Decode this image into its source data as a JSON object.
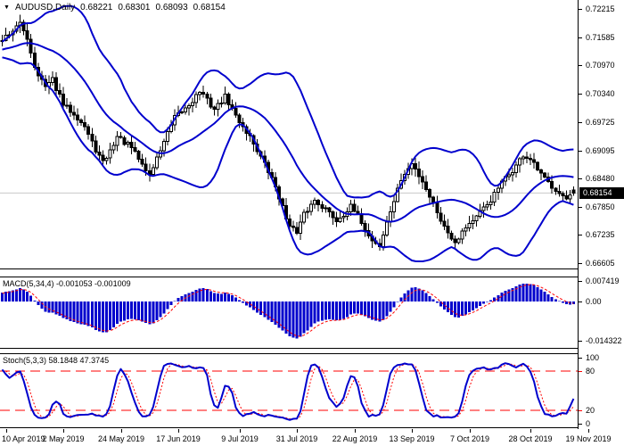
{
  "header": {
    "symbol_timeframe": "AUDUSD,Daily",
    "open": "0.68221",
    "high": "0.68301",
    "low": "0.68093",
    "close": "0.68154"
  },
  "price_panel": {
    "ticks": [
      {
        "v": 0.72215,
        "label": "0.72215"
      },
      {
        "v": 0.71585,
        "label": "0.71585"
      },
      {
        "v": 0.7097,
        "label": "0.70970"
      },
      {
        "v": 0.7034,
        "label": "0.70340"
      },
      {
        "v": 0.69725,
        "label": "0.69725"
      },
      {
        "v": 0.69095,
        "label": "0.69095"
      },
      {
        "v": 0.6848,
        "label": "0.68480"
      },
      {
        "v": 0.6785,
        "label": "0.67850"
      },
      {
        "v": 0.67235,
        "label": "0.67235"
      },
      {
        "v": 0.66605,
        "label": "0.66605"
      }
    ],
    "current_price": "0.68154",
    "ylim": [
      0.66489,
      0.72411
    ]
  },
  "macd_panel": {
    "label": "MACD(5,34,4) -0.001053 -0.001009",
    "ticks": [
      {
        "v": 0.007419,
        "label": "0.007419"
      },
      {
        "v": 0,
        "label": "0.00"
      },
      {
        "v": -0.014322,
        "label": "-0.014322"
      }
    ],
    "ylim": [
      -0.0169,
      0.0088
    ]
  },
  "stoch_panel": {
    "label": "Stoch(5,3,3) 58.1848 47.3745",
    "ticks": [
      {
        "v": 100,
        "label": "100",
        "color": "#000000"
      },
      {
        "v": 80,
        "label": "80",
        "color": "#FF0000"
      },
      {
        "v": 20,
        "label": "20",
        "color": "#FF0000"
      },
      {
        "v": 0,
        "label": "0",
        "color": "#000000"
      }
    ],
    "levels": [
      80,
      20
    ],
    "ylim": [
      -6,
      106
    ]
  },
  "time_axis": {
    "dates": [
      "10 Apr 2019",
      "2 May 2019",
      "24 May 2019",
      "17 Jun 2019",
      "9 Jul 2019",
      "31 Jul 2019",
      "22 Aug 2019",
      "13 Sep 2019",
      "7 Oct 2019",
      "28 Oct 2019",
      "19 Nov 2019"
    ],
    "tick_bar_indices": [
      1,
      17,
      33,
      49,
      66,
      82,
      98,
      114,
      130,
      147,
      163
    ]
  },
  "colors": {
    "bands": "#0000CD",
    "macd_histogram": "#0000CD",
    "macd_signal": "#FF0000",
    "stoch_k": "#0000CD",
    "stoch_d": "#FF0000",
    "levels": "#FF0000",
    "bull_body": "#FFFFFF",
    "bear_body": "#000000",
    "candle_outline": "#000000",
    "current_price_line": "#C8C8C8",
    "badge_bg": "#000000",
    "badge_fg": "#FFFFFF",
    "text": "#000000",
    "border": "#000000"
  },
  "chart_data": {
    "type": "candlestick",
    "title": "AUDUSD,Daily",
    "bars": 160,
    "ylim": [
      0.66489,
      0.72411
    ],
    "x_tick_labels": [
      "10 Apr 2019",
      "2 May 2019",
      "24 May 2019",
      "17 Jun 2019",
      "9 Jul 2019",
      "31 Jul 2019",
      "22 Aug 2019",
      "13 Sep 2019",
      "7 Oct 2019",
      "28 Oct 2019",
      "19 Nov 2019"
    ],
    "last_bar": {
      "open": 0.68221,
      "high": 0.68301,
      "low": 0.68093,
      "close": 0.68154
    },
    "close_anchors": [
      [
        0,
        0.7155
      ],
      [
        2,
        0.7168
      ],
      [
        5,
        0.7188
      ],
      [
        7,
        0.7158
      ],
      [
        9,
        0.7095
      ],
      [
        12,
        0.7048
      ],
      [
        14,
        0.7065
      ],
      [
        17,
        0.701
      ],
      [
        20,
        0.6992
      ],
      [
        23,
        0.6962
      ],
      [
        25,
        0.6925
      ],
      [
        28,
        0.6882
      ],
      [
        30,
        0.6908
      ],
      [
        32,
        0.694
      ],
      [
        36,
        0.6915
      ],
      [
        39,
        0.6878
      ],
      [
        41,
        0.6855
      ],
      [
        45,
        0.693
      ],
      [
        48,
        0.698
      ],
      [
        52,
        0.701
      ],
      [
        55,
        0.704
      ],
      [
        59,
        0.7
      ],
      [
        62,
        0.7028
      ],
      [
        65,
        0.6985
      ],
      [
        69,
        0.694
      ],
      [
        72,
        0.6895
      ],
      [
        76,
        0.683
      ],
      [
        79,
        0.676
      ],
      [
        82,
        0.6725
      ],
      [
        84,
        0.6768
      ],
      [
        87,
        0.68
      ],
      [
        90,
        0.678
      ],
      [
        93,
        0.6755
      ],
      [
        97,
        0.6785
      ],
      [
        100,
        0.6752
      ],
      [
        102,
        0.672
      ],
      [
        105,
        0.6698
      ],
      [
        108,
        0.6775
      ],
      [
        111,
        0.6845
      ],
      [
        114,
        0.688
      ],
      [
        117,
        0.6842
      ],
      [
        120,
        0.6792
      ],
      [
        123,
        0.674
      ],
      [
        126,
        0.6708
      ],
      [
        129,
        0.6742
      ],
      [
        132,
        0.6762
      ],
      [
        136,
        0.68
      ],
      [
        139,
        0.6838
      ],
      [
        142,
        0.6865
      ],
      [
        145,
        0.6898
      ],
      [
        147,
        0.6888
      ],
      [
        150,
        0.6855
      ],
      [
        152,
        0.6838
      ],
      [
        155,
        0.6818
      ],
      [
        157,
        0.68
      ],
      [
        159,
        0.68154
      ]
    ],
    "prehistory_anchors": [
      [
        -40,
        0.7015
      ],
      [
        -32,
        0.706
      ],
      [
        -24,
        0.7105
      ],
      [
        -16,
        0.714
      ],
      [
        -8,
        0.712
      ],
      [
        -1,
        0.7148
      ]
    ],
    "indicators": [
      {
        "type": "bollinger",
        "period": 20,
        "deviation": 2
      },
      {
        "type": "macd",
        "fast": 5,
        "slow": 34,
        "signal": 4,
        "last_macd": -0.001053,
        "last_signal": -0.001009,
        "ylim": [
          -0.0169,
          0.0088
        ],
        "yticks": [
          0.007419,
          0,
          -0.014322
        ]
      },
      {
        "type": "stochastic",
        "k_period": 5,
        "d_period": 3,
        "slowing": 3,
        "last_k": 58.1848,
        "last_d": 47.3745,
        "levels": [
          80,
          20
        ],
        "ylim": [
          0,
          100
        ]
      }
    ]
  }
}
